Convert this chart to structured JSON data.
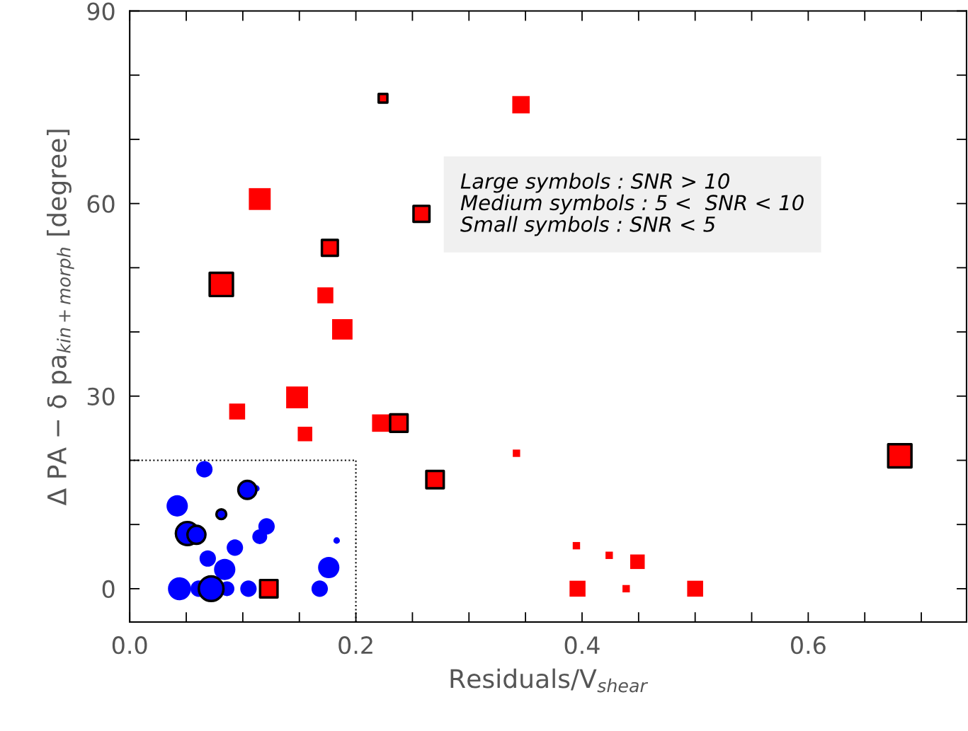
{
  "chart_data": {
    "type": "bubble",
    "xlabel": "Residuals/V$_{shear}$",
    "ylabel": "Δ PA − δ pa$_{kin+morph}$ [degree]",
    "xlim": [
      0,
      0.74
    ],
    "ylim": [
      -5.2,
      90
    ],
    "xticks": [
      {
        "value": 0,
        "label": "0.0"
      },
      {
        "value": 0.05,
        "label": null
      },
      {
        "value": 0.1,
        "label": null
      },
      {
        "value": 0.15,
        "label": null
      },
      {
        "value": 0.2,
        "label": "0.2"
      },
      {
        "value": 0.25,
        "label": null
      },
      {
        "value": 0.3,
        "label": null
      },
      {
        "value": 0.35,
        "label": null
      },
      {
        "value": 0.4,
        "label": "0.4"
      },
      {
        "value": 0.45,
        "label": null
      },
      {
        "value": 0.5,
        "label": null
      },
      {
        "value": 0.55,
        "label": null
      },
      {
        "value": 0.6,
        "label": "0.6"
      },
      {
        "value": 0.65,
        "label": null
      },
      {
        "value": 0.7,
        "label": null
      }
    ],
    "yticks": [
      0,
      {
        "value": 10,
        "label": null
      },
      {
        "value": 20,
        "label": null
      },
      30,
      {
        "value": 40,
        "label": null
      },
      {
        "value": 50,
        "label": null
      },
      60,
      {
        "value": 70,
        "label": null
      },
      {
        "value": 80,
        "label": null
      },
      90
    ],
    "grid": false,
    "legend": false,
    "ref_lines": [
      {
        "axis": "y",
        "value": 20,
        "line_style": "dotted",
        "color": "#000000"
      },
      {
        "axis": "x",
        "value": 0.2,
        "line_style": "dotted",
        "color": "#000000"
      }
    ],
    "annotations": [
      "Large symbols : SNR > 10\nMedium symbols : 5 <  SNR < 10\nSmall symbols : SNR < 5"
    ],
    "series": [
      {
        "color": "#ff0000",
        "marker": "square",
        "x": [
          0.346,
          0.115,
          0.173,
          0.188,
          0.148,
          0.095,
          0.155,
          0.222,
          0.342,
          0.396,
          0.395,
          0.424,
          0.439,
          0.449,
          0.5
        ],
        "values": [
          75.4,
          60.7,
          45.7,
          40.4,
          29.8,
          27.6,
          24.1,
          25.8,
          21.1,
          0,
          6.7,
          5.2,
          0,
          4.2,
          0
        ],
        "sizes": [
          0.56,
          0.88,
          0.47,
          0.77,
          0.88,
          0.47,
          0.39,
          0.56,
          0.1,
          0.47,
          0.1,
          0.1,
          0.1,
          0.39,
          0.47
        ]
      },
      {
        "color": "#ff0000",
        "marker": "square",
        "line_style": "solid",
        "x": [
          0.224,
          0.258,
          0.177,
          0.081,
          0.238,
          0.27,
          0.123,
          0.681
        ],
        "values": [
          76.4,
          58.4,
          53.1,
          47.4,
          25.8,
          17.0,
          0,
          20.7
        ],
        "sizes": [
          0.14,
          0.47,
          0.47,
          1,
          0.56,
          0.56,
          0.56,
          1
        ]
      },
      {
        "color": "#0000ff",
        "marker": "circle",
        "x": [
          0.066,
          0.042,
          0.121,
          0.115,
          0.093,
          0.069,
          0.084,
          0.176,
          0.183,
          0.044,
          0.061,
          0.086,
          0.105,
          0.168,
          0.112
        ],
        "values": [
          18.6,
          12.9,
          9.7,
          8.1,
          6.4,
          4.7,
          3.0,
          3.3,
          7.5,
          0,
          0,
          0,
          0,
          0,
          15.6
        ],
        "sizes": [
          0.39,
          0.66,
          0.39,
          0.32,
          0.39,
          0.39,
          0.66,
          0.66,
          0.06,
          0.77,
          0.39,
          0.32,
          0.39,
          0.39,
          0.06
        ]
      },
      {
        "color": "#0000ff",
        "marker": "circle",
        "line_style": "solid",
        "x": [
          0.104,
          0.081,
          0.051,
          0.059,
          0.072
        ],
        "values": [
          15.4,
          11.6,
          8.6,
          8.4,
          0
        ],
        "sizes": [
          0.47,
          0.14,
          0.77,
          0.47,
          0.88
        ]
      }
    ]
  }
}
